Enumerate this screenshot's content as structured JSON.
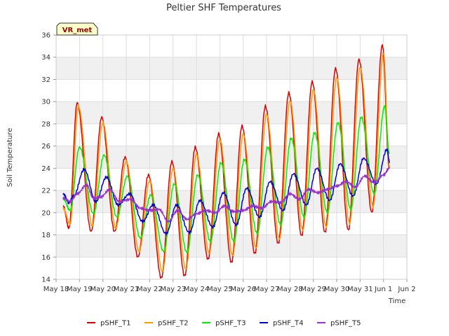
{
  "chart_data": {
    "type": "line",
    "title": "Peltier SHF Temperatures",
    "xlabel": "Time",
    "ylabel": "Soil Temperature",
    "annotation": "VR_met",
    "ylim": [
      14,
      36
    ],
    "yticks": [
      14,
      16,
      18,
      20,
      22,
      24,
      26,
      28,
      30,
      32,
      34,
      36
    ],
    "xlim": [
      0,
      15
    ],
    "xticks": [
      {
        "pos": 0,
        "label": "May 18"
      },
      {
        "pos": 1,
        "label": "May 19"
      },
      {
        "pos": 2,
        "label": "May 20"
      },
      {
        "pos": 3,
        "label": "May 21"
      },
      {
        "pos": 4,
        "label": "May 22"
      },
      {
        "pos": 5,
        "label": "May 23"
      },
      {
        "pos": 6,
        "label": "May 24"
      },
      {
        "pos": 7,
        "label": "May 25"
      },
      {
        "pos": 8,
        "label": "May 26"
      },
      {
        "pos": 9,
        "label": "May 27"
      },
      {
        "pos": 10,
        "label": "May 28"
      },
      {
        "pos": 11,
        "label": "May 29"
      },
      {
        "pos": 12,
        "label": "May 30"
      },
      {
        "pos": 13,
        "label": "May 31"
      },
      {
        "pos": 14,
        "label": "Jun 1"
      },
      {
        "pos": 15,
        "label": "Jun 2"
      }
    ],
    "grid": true,
    "background_bands": "#f0f0f0",
    "legend_position": "bottom",
    "series": [
      {
        "name": "pSHF_T1",
        "color": "#dd0000",
        "points": [
          [
            0.3,
            20.6
          ],
          [
            0.55,
            18.6
          ],
          [
            0.9,
            29.9
          ],
          [
            1.5,
            18.3
          ],
          [
            1.95,
            28.6
          ],
          [
            2.5,
            18.3
          ],
          [
            2.95,
            25.0
          ],
          [
            3.5,
            16.0
          ],
          [
            3.95,
            23.4
          ],
          [
            4.5,
            14.1
          ],
          [
            4.95,
            24.6
          ],
          [
            5.5,
            14.3
          ],
          [
            5.95,
            25.9
          ],
          [
            6.5,
            15.8
          ],
          [
            6.95,
            27.1
          ],
          [
            7.5,
            15.5
          ],
          [
            7.95,
            27.8
          ],
          [
            8.5,
            16.3
          ],
          [
            8.95,
            29.6
          ],
          [
            9.5,
            17.2
          ],
          [
            9.95,
            30.8
          ],
          [
            10.5,
            17.9
          ],
          [
            10.95,
            31.8
          ],
          [
            11.5,
            18.2
          ],
          [
            11.95,
            33.0
          ],
          [
            12.5,
            18.4
          ],
          [
            12.95,
            33.8
          ],
          [
            13.5,
            20.0
          ],
          [
            13.95,
            35.1
          ],
          [
            14.25,
            24.0
          ]
        ]
      },
      {
        "name": "pSHF_T2",
        "color": "#ff9900",
        "points": [
          [
            0.3,
            20.4
          ],
          [
            0.6,
            19.0
          ],
          [
            0.95,
            29.6
          ],
          [
            1.55,
            18.8
          ],
          [
            2.0,
            28.1
          ],
          [
            2.55,
            18.6
          ],
          [
            3.0,
            24.6
          ],
          [
            3.55,
            16.5
          ],
          [
            4.0,
            22.9
          ],
          [
            4.55,
            14.7
          ],
          [
            5.0,
            24.0
          ],
          [
            5.55,
            14.9
          ],
          [
            6.0,
            25.3
          ],
          [
            6.55,
            16.3
          ],
          [
            7.0,
            26.6
          ],
          [
            7.55,
            16.1
          ],
          [
            8.0,
            27.1
          ],
          [
            8.55,
            16.8
          ],
          [
            9.0,
            28.9
          ],
          [
            9.55,
            17.6
          ],
          [
            10.0,
            30.1
          ],
          [
            10.55,
            18.4
          ],
          [
            11.0,
            31.1
          ],
          [
            11.55,
            18.7
          ],
          [
            12.0,
            32.2
          ],
          [
            12.55,
            19.0
          ],
          [
            13.0,
            33.1
          ],
          [
            13.55,
            20.5
          ],
          [
            14.0,
            34.4
          ],
          [
            14.25,
            24.2
          ]
        ]
      },
      {
        "name": "pSHF_T3",
        "color": "#00ee00",
        "points": [
          [
            0.3,
            21.3
          ],
          [
            0.6,
            20.2
          ],
          [
            1.0,
            25.9
          ],
          [
            1.6,
            19.9
          ],
          [
            2.05,
            25.2
          ],
          [
            2.6,
            19.6
          ],
          [
            3.05,
            23.3
          ],
          [
            3.6,
            17.7
          ],
          [
            4.05,
            21.6
          ],
          [
            4.6,
            16.5
          ],
          [
            5.05,
            22.6
          ],
          [
            5.6,
            16.4
          ],
          [
            6.05,
            23.4
          ],
          [
            6.6,
            17.4
          ],
          [
            7.05,
            24.5
          ],
          [
            7.6,
            17.4
          ],
          [
            8.05,
            24.8
          ],
          [
            8.6,
            18.1
          ],
          [
            9.05,
            25.9
          ],
          [
            9.6,
            18.9
          ],
          [
            10.05,
            26.7
          ],
          [
            10.6,
            19.6
          ],
          [
            11.05,
            27.2
          ],
          [
            11.6,
            20.0
          ],
          [
            12.05,
            28.1
          ],
          [
            12.6,
            20.3
          ],
          [
            13.05,
            28.6
          ],
          [
            13.6,
            21.7
          ],
          [
            14.05,
            29.6
          ],
          [
            14.25,
            25.3
          ]
        ]
      },
      {
        "name": "pSHF_T4",
        "color": "#0000cc",
        "points": [
          [
            0.3,
            21.7
          ],
          [
            0.55,
            20.9
          ],
          [
            0.75,
            21.5
          ],
          [
            1.2,
            23.9
          ],
          [
            1.7,
            21.0
          ],
          [
            2.15,
            23.2
          ],
          [
            2.65,
            20.7
          ],
          [
            3.15,
            21.7
          ],
          [
            3.7,
            19.2
          ],
          [
            4.15,
            20.7
          ],
          [
            4.7,
            18.1
          ],
          [
            5.15,
            20.7
          ],
          [
            5.7,
            18.2
          ],
          [
            6.15,
            21.1
          ],
          [
            6.7,
            18.7
          ],
          [
            7.15,
            21.8
          ],
          [
            7.7,
            18.9
          ],
          [
            8.15,
            22.2
          ],
          [
            8.7,
            19.6
          ],
          [
            9.15,
            22.8
          ],
          [
            9.7,
            20.2
          ],
          [
            10.15,
            23.5
          ],
          [
            10.7,
            20.7
          ],
          [
            11.15,
            24.0
          ],
          [
            11.7,
            21.1
          ],
          [
            12.15,
            24.4
          ],
          [
            12.7,
            21.5
          ],
          [
            13.15,
            24.9
          ],
          [
            13.7,
            22.6
          ],
          [
            14.15,
            25.7
          ],
          [
            14.25,
            24.6
          ]
        ]
      },
      {
        "name": "pSHF_T5",
        "color": "#9933cc",
        "points": [
          [
            0.3,
            21.3
          ],
          [
            0.6,
            21.0
          ],
          [
            0.9,
            21.7
          ],
          [
            1.3,
            22.5
          ],
          [
            1.6,
            21.3
          ],
          [
            1.9,
            21.4
          ],
          [
            2.3,
            22.1
          ],
          [
            2.7,
            21.0
          ],
          [
            3.2,
            21.2
          ],
          [
            3.6,
            20.4
          ],
          [
            4.0,
            20.2
          ],
          [
            4.4,
            20.3
          ],
          [
            4.8,
            19.2
          ],
          [
            5.2,
            20.2
          ],
          [
            5.6,
            19.4
          ],
          [
            6.0,
            19.9
          ],
          [
            6.4,
            20.2
          ],
          [
            6.8,
            20.0
          ],
          [
            7.2,
            20.6
          ],
          [
            7.6,
            20.1
          ],
          [
            8.0,
            20.2
          ],
          [
            8.4,
            20.6
          ],
          [
            8.8,
            20.4
          ],
          [
            9.2,
            21.0
          ],
          [
            9.6,
            20.9
          ],
          [
            10.0,
            21.7
          ],
          [
            10.4,
            21.2
          ],
          [
            10.8,
            22.1
          ],
          [
            11.2,
            21.8
          ],
          [
            11.6,
            22.1
          ],
          [
            12.0,
            22.4
          ],
          [
            12.4,
            22.8
          ],
          [
            12.8,
            22.3
          ],
          [
            13.2,
            23.3
          ],
          [
            13.6,
            22.7
          ],
          [
            14.0,
            23.4
          ],
          [
            14.25,
            24.0
          ]
        ]
      }
    ]
  }
}
